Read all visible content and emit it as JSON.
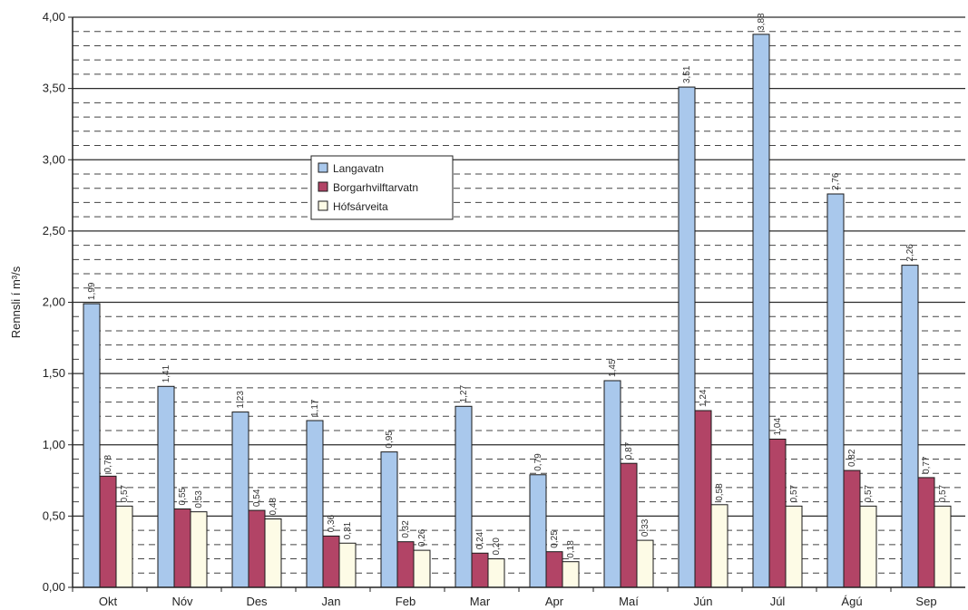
{
  "chart_data": {
    "type": "bar",
    "title": "",
    "xlabel": "",
    "ylabel": "Rennsli í m³/s",
    "ylim": [
      0,
      4
    ],
    "ytick_step": 0.5,
    "ytick_labels": [
      "0,00",
      "0,50",
      "1,00",
      "1,50",
      "2,00",
      "2,50",
      "3,00",
      "3,50",
      "4,00"
    ],
    "grid": true,
    "legend_position": "upper-left-center",
    "categories": [
      "Okt",
      "Nóv",
      "Des",
      "Jan",
      "Feb",
      "Mar",
      "Apr",
      "Maí",
      "Jún",
      "Júl",
      "Ágú",
      "Sep"
    ],
    "series": [
      {
        "name": "Langavatn",
        "color": "#a9c8ec",
        "values": [
          1.99,
          1.41,
          1.23,
          1.17,
          0.95,
          1.27,
          0.79,
          1.45,
          3.51,
          3.88,
          2.76,
          2.26
        ],
        "labels": [
          "1,99",
          "1,41",
          "1,23",
          "1,17",
          "0,95",
          "1,27",
          "0,79",
          "1,45",
          "3,51",
          "3,88",
          "2,76",
          "2,26"
        ]
      },
      {
        "name": "Borgarhvilftarvatn",
        "color": "#b24466",
        "values": [
          0.78,
          0.55,
          0.54,
          0.36,
          0.32,
          0.24,
          0.25,
          0.87,
          1.24,
          1.04,
          0.82,
          0.77
        ],
        "labels": [
          "0,78",
          "0,55",
          "0,54",
          "0,36",
          "0,32",
          "0,24",
          "0,25",
          "0,87",
          "1,24",
          "1,04",
          "0,82",
          "0,77"
        ]
      },
      {
        "name": "Hófsárveita",
        "color": "#fdfbe6",
        "values": [
          0.57,
          0.53,
          0.48,
          0.31,
          0.26,
          0.2,
          0.18,
          0.33,
          0.58,
          0.57,
          0.57,
          0.57
        ],
        "labels": [
          "0,57",
          "0,53",
          "0,48",
          "0,31",
          "0,26",
          "0,20",
          "0,18",
          "0,33",
          "0,58",
          "0,57",
          "0,57",
          "0,57"
        ]
      }
    ]
  }
}
